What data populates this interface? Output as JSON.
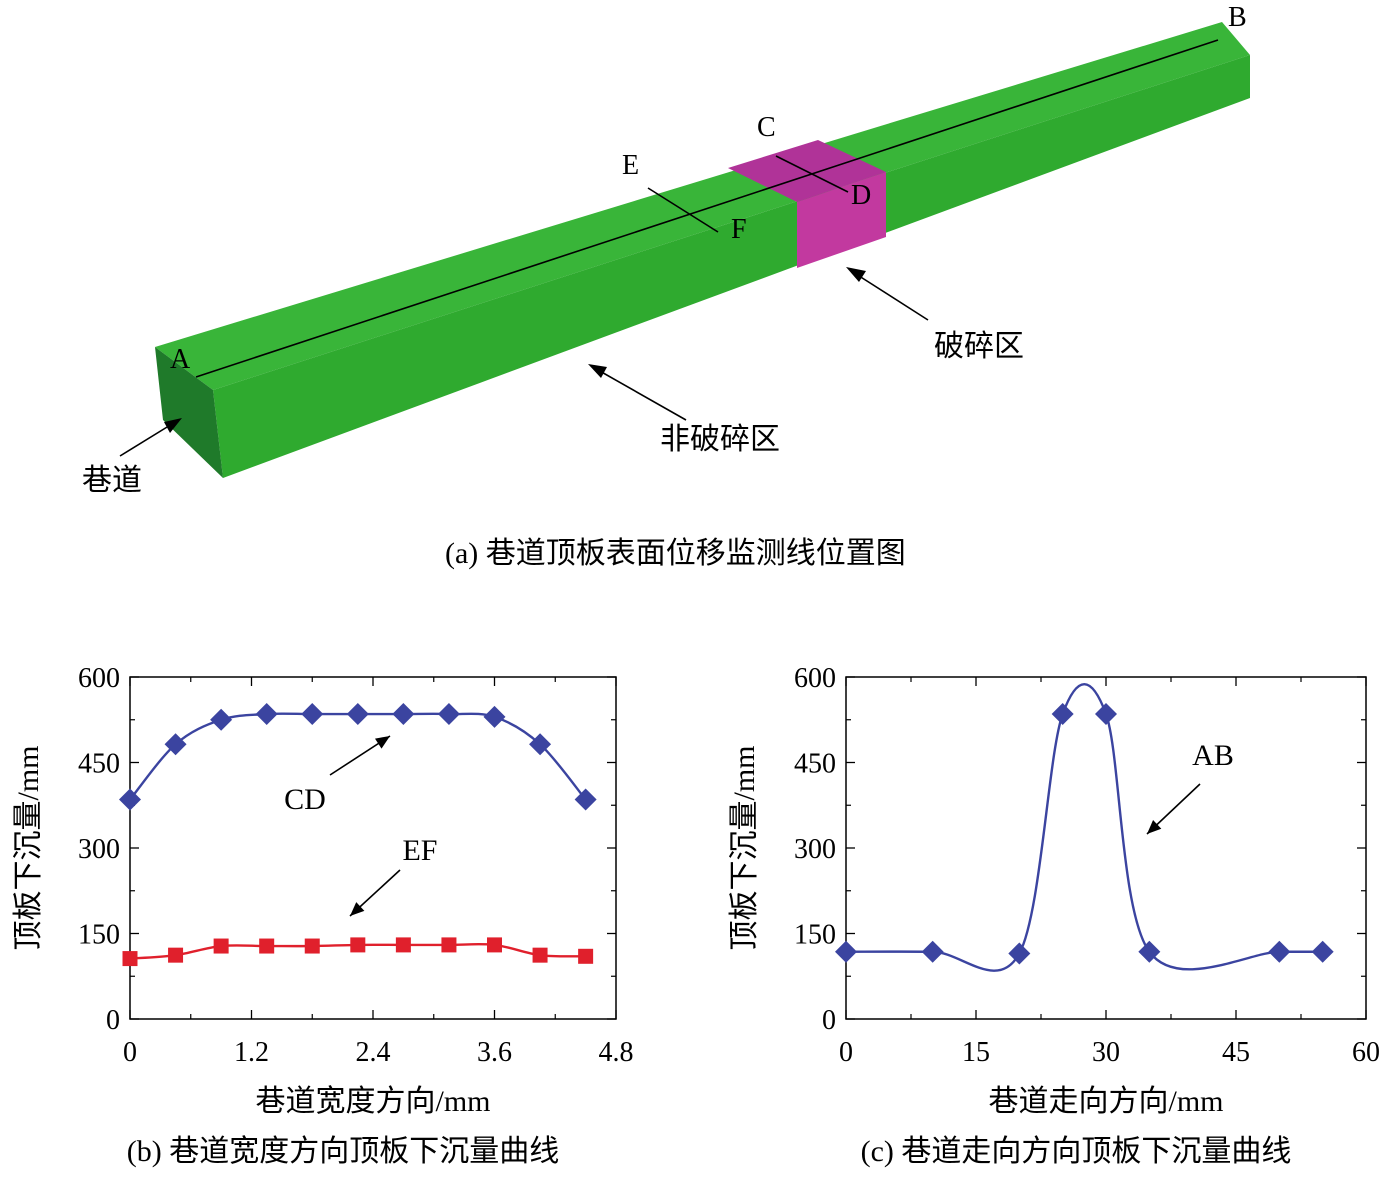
{
  "panel_a": {
    "caption": "(a) 巷道顶板表面位移监测线位置图",
    "labels": {
      "A": "A",
      "B": "B",
      "C": "C",
      "D": "D",
      "E": "E",
      "F": "F",
      "broken_zone": "破碎区",
      "unbroken_zone": "非破碎区",
      "roadway": "巷道"
    },
    "colors": {
      "unbroken": "#33B333",
      "broken": "#B0309A"
    }
  },
  "chart_data": [
    {
      "type": "line",
      "caption": "(b) 巷道宽度方向顶板下沉量曲线",
      "xlabel": "巷道宽度方向/mm",
      "ylabel": "顶板下沉量/mm",
      "xlim": [
        0,
        4.8
      ],
      "ylim": [
        0,
        600
      ],
      "xticks": [
        0,
        1.2,
        2.4,
        3.6,
        4.8
      ],
      "xtick_labels": [
        "0",
        "1.2",
        "2.4",
        "3.6",
        "4.8"
      ],
      "yticks": [
        0,
        150,
        300,
        450,
        600
      ],
      "ytick_labels": [
        "0",
        "150",
        "300",
        "450",
        "600"
      ],
      "x": [
        0,
        0.45,
        0.9,
        1.35,
        1.8,
        2.25,
        2.7,
        3.15,
        3.6,
        4.05,
        4.5
      ],
      "series": [
        {
          "name": "CD",
          "marker": "diamond",
          "color": "#3B44A0",
          "values": [
            385,
            482,
            525,
            535,
            535,
            535,
            535,
            535,
            530,
            482,
            385
          ]
        },
        {
          "name": "EF",
          "marker": "square",
          "color": "#E0202C",
          "values": [
            106,
            112,
            128,
            128,
            128,
            130,
            130,
            130,
            130,
            112,
            110
          ]
        }
      ]
    },
    {
      "type": "line",
      "caption": "(c) 巷道走向方向顶板下沉量曲线",
      "xlabel": "巷道走向方向/mm",
      "ylabel": "顶板下沉量/mm",
      "xlim": [
        0,
        60
      ],
      "ylim": [
        0,
        600
      ],
      "xticks": [
        0,
        15,
        30,
        45,
        60
      ],
      "xtick_labels": [
        "0",
        "15",
        "30",
        "45",
        "60"
      ],
      "yticks": [
        0,
        150,
        300,
        450,
        600
      ],
      "ytick_labels": [
        "0",
        "150",
        "300",
        "450",
        "600"
      ],
      "series": [
        {
          "name": "AB",
          "marker": "diamond",
          "color": "#3B44A0",
          "x": [
            0,
            10,
            20,
            25,
            30,
            35,
            50,
            55
          ],
          "values": [
            118,
            118,
            115,
            535,
            535,
            118,
            118,
            118
          ]
        }
      ]
    }
  ]
}
